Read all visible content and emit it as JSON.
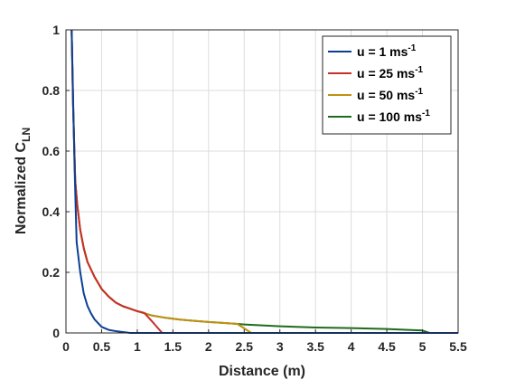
{
  "chart_data": {
    "type": "line",
    "xlabel": "Distance (m)",
    "ylabel": {
      "main": "Normalized C",
      "sub": "LN"
    },
    "xlim": [
      0,
      5.5
    ],
    "ylim": [
      0,
      1
    ],
    "xticks": [
      0,
      0.5,
      1,
      1.5,
      2,
      2.5,
      3,
      3.5,
      4,
      4.5,
      5,
      5.5
    ],
    "xtick_labels": [
      "0",
      "0.5",
      "1",
      "1.5",
      "2",
      "2.5",
      "3",
      "3.5",
      "4",
      "4.5",
      "5",
      "5.5"
    ],
    "yticks": [
      0,
      0.2,
      0.4,
      0.6,
      0.8,
      1
    ],
    "ytick_labels": [
      "0",
      "0.2",
      "0.4",
      "0.6",
      "0.8",
      "1"
    ],
    "grid": true,
    "legend_position": "top-right",
    "series": [
      {
        "name": "u = 1 ms",
        "name_sup": "-1",
        "color": "#0b3f94",
        "x": [
          0.08,
          0.12,
          0.15,
          0.2,
          0.25,
          0.3,
          0.35,
          0.4,
          0.5,
          0.6,
          0.7,
          0.8,
          0.9,
          1.0,
          5.5
        ],
        "y": [
          1.0,
          0.55,
          0.3,
          0.2,
          0.13,
          0.09,
          0.065,
          0.045,
          0.02,
          0.01,
          0.006,
          0.003,
          0.0,
          0.0,
          0.0
        ]
      },
      {
        "name": "u = 25 ms",
        "name_sup": "-1",
        "color": "#c72f2a",
        "x": [
          0.08,
          0.1,
          0.13,
          0.16,
          0.2,
          0.25,
          0.3,
          0.4,
          0.5,
          0.6,
          0.7,
          0.8,
          0.9,
          1.0,
          1.1,
          1.2,
          1.35,
          5.5
        ],
        "y": [
          1.0,
          0.75,
          0.5,
          0.42,
          0.34,
          0.28,
          0.235,
          0.185,
          0.145,
          0.12,
          0.1,
          0.088,
          0.08,
          0.072,
          0.066,
          0.04,
          0.0,
          0.0
        ]
      },
      {
        "name": "u = 50 ms",
        "name_sup": "-1",
        "color": "#c2900f",
        "x": [
          0.08,
          0.1,
          0.13,
          0.16,
          0.2,
          0.25,
          0.3,
          0.4,
          0.5,
          0.6,
          0.7,
          0.8,
          0.9,
          1.0,
          1.2,
          1.4,
          1.6,
          1.8,
          2.0,
          2.2,
          2.4,
          2.6,
          5.5
        ],
        "y": [
          1.0,
          0.75,
          0.5,
          0.42,
          0.34,
          0.28,
          0.235,
          0.185,
          0.145,
          0.12,
          0.1,
          0.088,
          0.08,
          0.072,
          0.058,
          0.05,
          0.044,
          0.04,
          0.036,
          0.033,
          0.03,
          0.0,
          0.0
        ]
      },
      {
        "name": "u = 100 ms",
        "name_sup": "-1",
        "color": "#1e6b1e",
        "x": [
          0.08,
          0.1,
          0.13,
          0.16,
          0.2,
          0.25,
          0.3,
          0.4,
          0.5,
          0.6,
          0.7,
          0.8,
          0.9,
          1.0,
          1.2,
          1.4,
          1.6,
          1.8,
          2.0,
          2.2,
          2.5,
          3.0,
          3.5,
          4.0,
          4.5,
          4.8,
          5.0,
          5.1,
          5.5
        ],
        "y": [
          1.0,
          0.75,
          0.5,
          0.42,
          0.34,
          0.28,
          0.235,
          0.185,
          0.145,
          0.12,
          0.1,
          0.088,
          0.08,
          0.072,
          0.058,
          0.05,
          0.044,
          0.04,
          0.036,
          0.033,
          0.028,
          0.022,
          0.018,
          0.016,
          0.013,
          0.01,
          0.008,
          0.0,
          0.0
        ]
      }
    ]
  }
}
